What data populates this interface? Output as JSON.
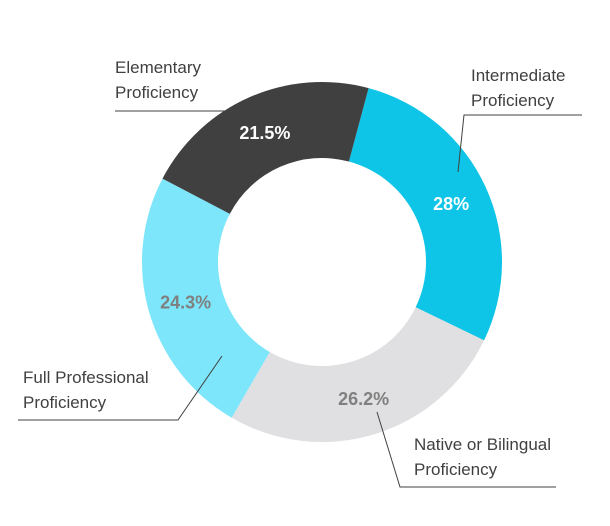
{
  "chart_data": {
    "type": "pie",
    "variant": "donut",
    "title": "",
    "slices": [
      {
        "label_lines": [
          "Intermediate",
          "Proficiency"
        ],
        "value": 28,
        "value_label": "28%",
        "color": "#0ec5e7",
        "value_label_color": "#ffffff"
      },
      {
        "label_lines": [
          "Native or Bilingual",
          "Proficiency"
        ],
        "value": 26.2,
        "value_label": "26.2%",
        "color": "#e0e0e2",
        "value_label_color": "#808080"
      },
      {
        "label_lines": [
          "Full Professional",
          "Proficiency"
        ],
        "value": 24.3,
        "value_label": "24.3%",
        "color": "#7ee6fb",
        "value_label_color": "#7f7f7f"
      },
      {
        "label_lines": [
          "Elementary",
          "Proficiency"
        ],
        "value": 21.5,
        "value_label": "21.5%",
        "color": "#404040",
        "value_label_color": "#ffffff"
      }
    ],
    "start_angle_deg": 15,
    "direction": "clockwise",
    "legend": "none",
    "label_style": "external leader lines"
  }
}
